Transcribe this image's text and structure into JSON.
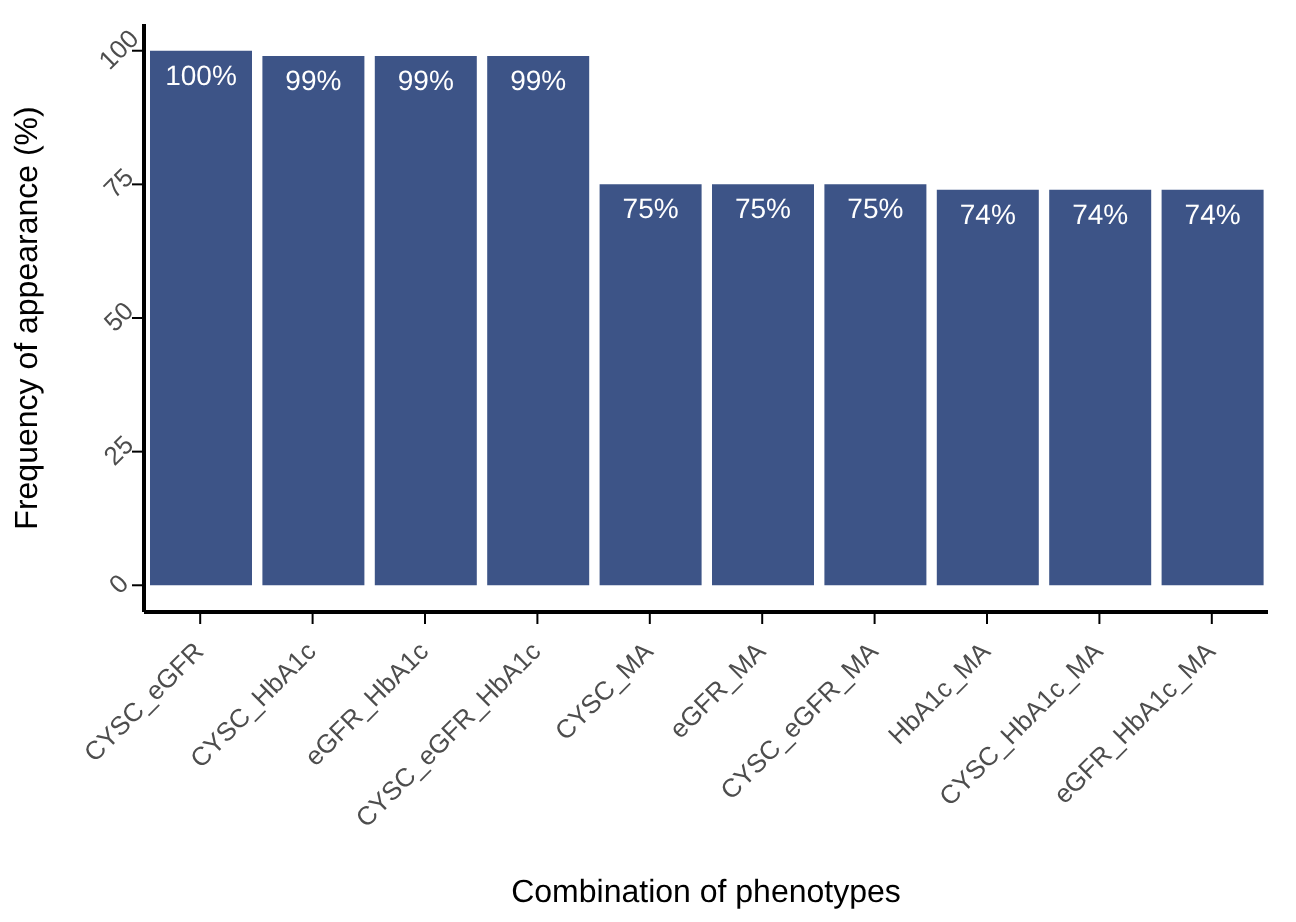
{
  "chart_data": {
    "type": "bar",
    "xlabel": "Combination of phenotypes",
    "ylabel": "Frequency of appearance (%)",
    "categories": [
      "CYSC_eGFR",
      "CYSC_HbA1c",
      "eGFR_HbA1c",
      "CYSC_eGFR_HbA1c",
      "CYSC_MA",
      "eGFR_MA",
      "CYSC_eGFR_MA",
      "HbA1c_MA",
      "CYSC_HbA1c_MA",
      "eGFR_HbA1c_MA"
    ],
    "values": [
      100,
      99,
      99,
      99,
      75,
      75,
      75,
      74,
      74,
      74
    ],
    "value_labels": [
      "100%",
      "99%",
      "99%",
      "99%",
      "75%",
      "75%",
      "75%",
      "74%",
      "74%",
      "74%"
    ],
    "color": "#3d5487",
    "ylim": [
      -5,
      105
    ],
    "yticks": [
      0,
      25,
      50,
      75,
      100
    ],
    "grid": false
  }
}
